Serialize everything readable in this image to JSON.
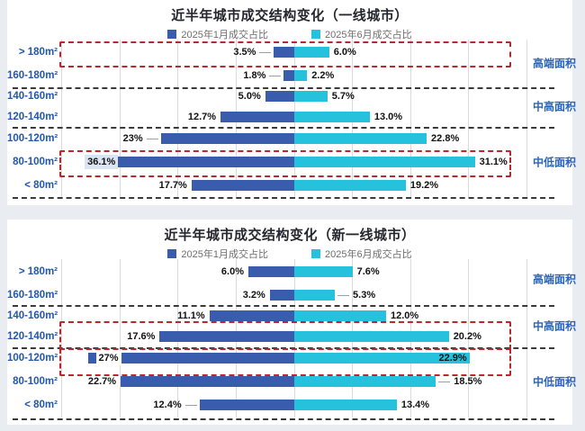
{
  "colors": {
    "jan_bar": "#3a5cad",
    "jun_bar": "#25c1dd",
    "title_text": "#26262e",
    "legend_text": "#6e6e6e",
    "category_text": "#2257ac",
    "group_text": "#2a64b8",
    "value_text": "#111111",
    "highlight_border": "#b8292f",
    "panel_background": "#ffffff",
    "page_background": "#e9edf2"
  },
  "chart_data": [
    {
      "type": "bar",
      "orientation": "horizontal-diverging",
      "title": "近半年城市成交结构变化（一线城市）",
      "legend_position": "top",
      "grid": true,
      "categories": [
        "> 180m²",
        "160-180m²",
        "140-160m²",
        "120-140m²",
        "100-120m²",
        "80-100m²",
        "< 80m²"
      ],
      "series": [
        {
          "name": "2025年1月成交占比",
          "side": "left",
          "values": [
            3.5,
            1.8,
            5.0,
            12.7,
            23,
            36.1,
            17.7
          ],
          "labels": [
            "3.5%",
            "1.8%",
            "5.0%",
            "12.7%",
            "23%",
            "36.1%",
            "17.7%"
          ]
        },
        {
          "name": "2025年6月成交占比",
          "side": "right",
          "values": [
            6.0,
            2.2,
            5.7,
            13.0,
            22.8,
            31.1,
            19.2
          ],
          "labels": [
            "6.0%",
            "2.2%",
            "5.7%",
            "13.0%",
            "22.8%",
            "31.1%",
            "19.2%"
          ]
        }
      ],
      "jan_leader_rows": [
        0,
        1,
        4
      ],
      "jun_leader_rows": [],
      "jan_label_style": [
        null,
        null,
        null,
        null,
        null,
        "on-bar-light",
        null
      ],
      "jun_label_style": [
        null,
        null,
        null,
        null,
        null,
        null,
        null
      ],
      "group_labels": [
        {
          "text": "高端面积",
          "rows": [
            0,
            1
          ]
        },
        {
          "text": "中高面积",
          "rows": [
            2,
            3
          ]
        },
        {
          "text": "中低面积",
          "rows": [
            4,
            5,
            6
          ]
        }
      ],
      "highlighted_rows": [
        [
          0,
          0
        ],
        [
          5,
          5
        ]
      ]
    },
    {
      "type": "bar",
      "orientation": "horizontal-diverging",
      "title": "近半年城市成交结构变化（新一线城市）",
      "legend_position": "top",
      "grid": true,
      "categories": [
        "> 180m²",
        "160-180m²",
        "140-160m²",
        "120-140m²",
        "100-120m²",
        "80-100m²",
        "< 80m²"
      ],
      "series": [
        {
          "name": "2025年1月成交占比",
          "side": "left",
          "values": [
            6.0,
            3.2,
            11.1,
            17.6,
            27,
            22.7,
            12.4
          ],
          "labels": [
            "6.0%",
            "3.2%",
            "11.1%",
            "17.6%",
            "27%",
            "22.7%",
            "12.4%"
          ]
        },
        {
          "name": "2025年6月成交占比",
          "side": "right",
          "values": [
            7.6,
            5.3,
            12.0,
            20.2,
            22.9,
            18.5,
            13.4
          ],
          "labels": [
            "7.6%",
            "5.3%",
            "12.0%",
            "20.2%",
            "22.9%",
            "18.5%",
            "13.4%"
          ]
        }
      ],
      "jan_leader_rows": [
        6
      ],
      "jun_leader_rows": [
        1,
        5
      ],
      "jan_label_style": [
        null,
        null,
        null,
        null,
        "on-bar-white-inset",
        null,
        null
      ],
      "jun_label_style": [
        null,
        null,
        null,
        null,
        "on-bar-end",
        null,
        null
      ],
      "group_labels": [
        {
          "text": "高端面积",
          "rows": [
            0,
            1
          ]
        },
        {
          "text": "中高面积",
          "rows": [
            2,
            3
          ]
        },
        {
          "text": "中低面积",
          "rows": [
            4,
            5,
            6
          ]
        }
      ],
      "highlighted_rows": [
        [
          3,
          3
        ],
        [
          4,
          4
        ]
      ]
    }
  ]
}
